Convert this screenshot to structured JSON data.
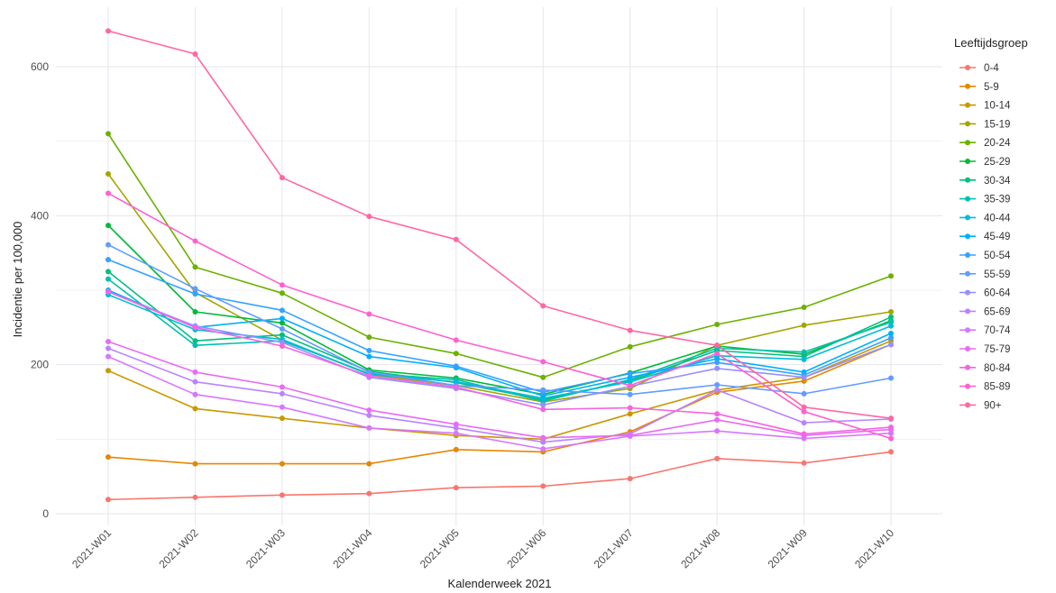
{
  "chart_data": {
    "type": "line",
    "xlabel": "Kalenderweek 2021",
    "ylabel": "Incidentie per 100,000",
    "ylim": [
      0,
      650
    ],
    "yticks": [
      0,
      200,
      400,
      600
    ],
    "grid": true,
    "legend": {
      "title": "Leeftijdsgroep",
      "position": "right"
    },
    "x": [
      "2021-W01",
      "2021-W02",
      "2021-W03",
      "2021-W04",
      "2021-W05",
      "2021-W06",
      "2021-W07",
      "2021-W08",
      "2021-W09",
      "2021-W10"
    ],
    "series": [
      {
        "name": "0-4",
        "color": "#F8766D",
        "values": [
          19,
          22,
          25,
          27,
          35,
          37,
          47,
          74,
          68,
          83
        ]
      },
      {
        "name": "5-9",
        "color": "#E58700",
        "values": [
          76,
          67,
          67,
          67,
          86,
          83,
          110,
          163,
          178,
          227
        ]
      },
      {
        "name": "10-14",
        "color": "#C99800",
        "values": [
          192,
          141,
          128,
          115,
          105,
          100,
          134,
          166,
          183,
          232
        ]
      },
      {
        "name": "15-19",
        "color": "#A3A500",
        "values": [
          456,
          297,
          233,
          187,
          172,
          150,
          168,
          226,
          253,
          271
        ]
      },
      {
        "name": "20-24",
        "color": "#6BB100",
        "values": [
          510,
          331,
          296,
          237,
          215,
          183,
          224,
          254,
          277,
          319
        ]
      },
      {
        "name": "25-29",
        "color": "#00BA38",
        "values": [
          387,
          271,
          256,
          193,
          182,
          160,
          189,
          225,
          214,
          259
        ]
      },
      {
        "name": "30-34",
        "color": "#00BF7D",
        "values": [
          325,
          232,
          240,
          191,
          176,
          153,
          178,
          219,
          211,
          264
        ]
      },
      {
        "name": "35-39",
        "color": "#00C0AF",
        "values": [
          315,
          226,
          232,
          188,
          180,
          151,
          180,
          222,
          217,
          257
        ]
      },
      {
        "name": "40-44",
        "color": "#00BCD8",
        "values": [
          294,
          247,
          234,
          187,
          177,
          155,
          177,
          212,
          207,
          252
        ]
      },
      {
        "name": "45-49",
        "color": "#00B0F6",
        "values": [
          300,
          250,
          262,
          211,
          196,
          158,
          183,
          208,
          190,
          242
        ]
      },
      {
        "name": "50-54",
        "color": "#35A2FF",
        "values": [
          341,
          295,
          273,
          219,
          198,
          163,
          188,
          203,
          186,
          236
        ]
      },
      {
        "name": "55-59",
        "color": "#619CFF",
        "values": [
          361,
          302,
          248,
          190,
          172,
          166,
          160,
          173,
          161,
          182
        ]
      },
      {
        "name": "60-64",
        "color": "#9590FF",
        "values": [
          298,
          252,
          230,
          183,
          168,
          146,
          171,
          195,
          183,
          227
        ]
      },
      {
        "name": "65-69",
        "color": "#B983FF",
        "values": [
          222,
          177,
          161,
          132,
          115,
          96,
          107,
          166,
          122,
          127
        ]
      },
      {
        "name": "70-74",
        "color": "#D776FF",
        "values": [
          211,
          160,
          143,
          115,
          108,
          87,
          104,
          111,
          101,
          108
        ]
      },
      {
        "name": "75-79",
        "color": "#E76BF3",
        "values": [
          231,
          190,
          170,
          139,
          120,
          102,
          105,
          126,
          105,
          113
        ]
      },
      {
        "name": "80-84",
        "color": "#F564E3",
        "values": [
          298,
          250,
          225,
          185,
          170,
          140,
          142,
          134,
          107,
          116
        ]
      },
      {
        "name": "85-89",
        "color": "#FD61D1",
        "values": [
          430,
          366,
          307,
          268,
          233,
          204,
          172,
          215,
          137,
          101
        ]
      },
      {
        "name": "90+",
        "color": "#FF67A4",
        "values": [
          648,
          617,
          451,
          399,
          368,
          279,
          246,
          226,
          143,
          128
        ]
      }
    ]
  }
}
